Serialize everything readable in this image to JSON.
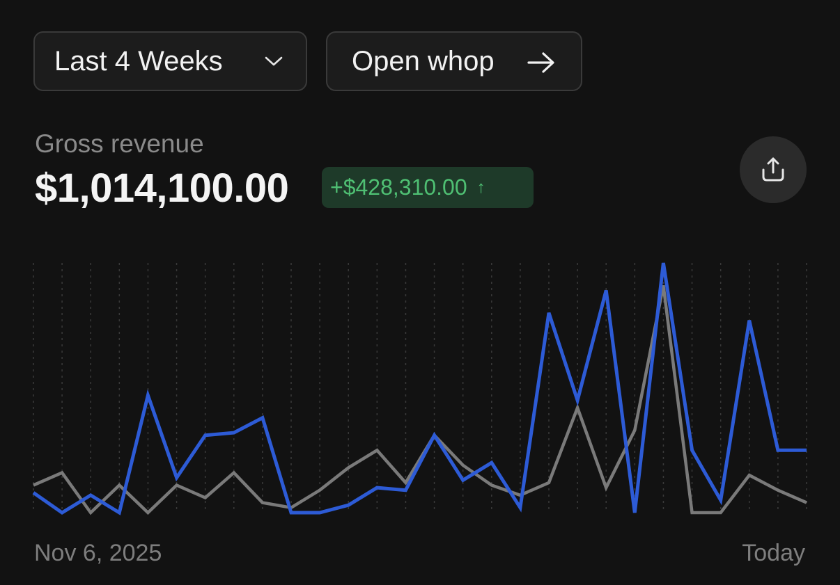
{
  "controls": {
    "range_label": "Last 4 Weeks",
    "open_label": "Open whop"
  },
  "metric": {
    "label": "Gross revenue",
    "value": "$1,014,100.00",
    "delta": "+$428,310.00",
    "delta_arrow": "↑"
  },
  "icons": {
    "range_dropdown": "chevron-down-icon",
    "open": "arrow-right-icon",
    "delta": "arrow-up-icon",
    "share": "share-icon"
  },
  "colors": {
    "background": "#121212",
    "current_series": "#2d5bd6",
    "previous_series": "#7a7a7a",
    "delta_text": "#4fbf73",
    "delta_bg": "#1e3a29"
  },
  "chart_data": {
    "type": "line",
    "x_start_label": "Nov 6, 2025",
    "x_end_label": "Today",
    "grid": "vertical dotted lines",
    "ylim": [
      0,
      100
    ],
    "series": [
      {
        "role": "current period",
        "color": "#2d5bd6",
        "values": [
          8,
          0,
          7,
          0,
          47,
          14,
          31,
          32,
          38,
          0,
          0,
          3,
          10,
          9,
          31,
          13,
          20,
          2,
          80,
          45,
          89,
          0,
          100,
          25,
          5,
          77,
          25,
          25
        ]
      },
      {
        "role": "previous period",
        "color": "#7a7a7a",
        "values": [
          11,
          16,
          0,
          11,
          0,
          11,
          6,
          16,
          4,
          2,
          9,
          18,
          25,
          12,
          31,
          19,
          11,
          7,
          12,
          42,
          10,
          33,
          91,
          0,
          0,
          15,
          9,
          4
        ]
      }
    ]
  }
}
